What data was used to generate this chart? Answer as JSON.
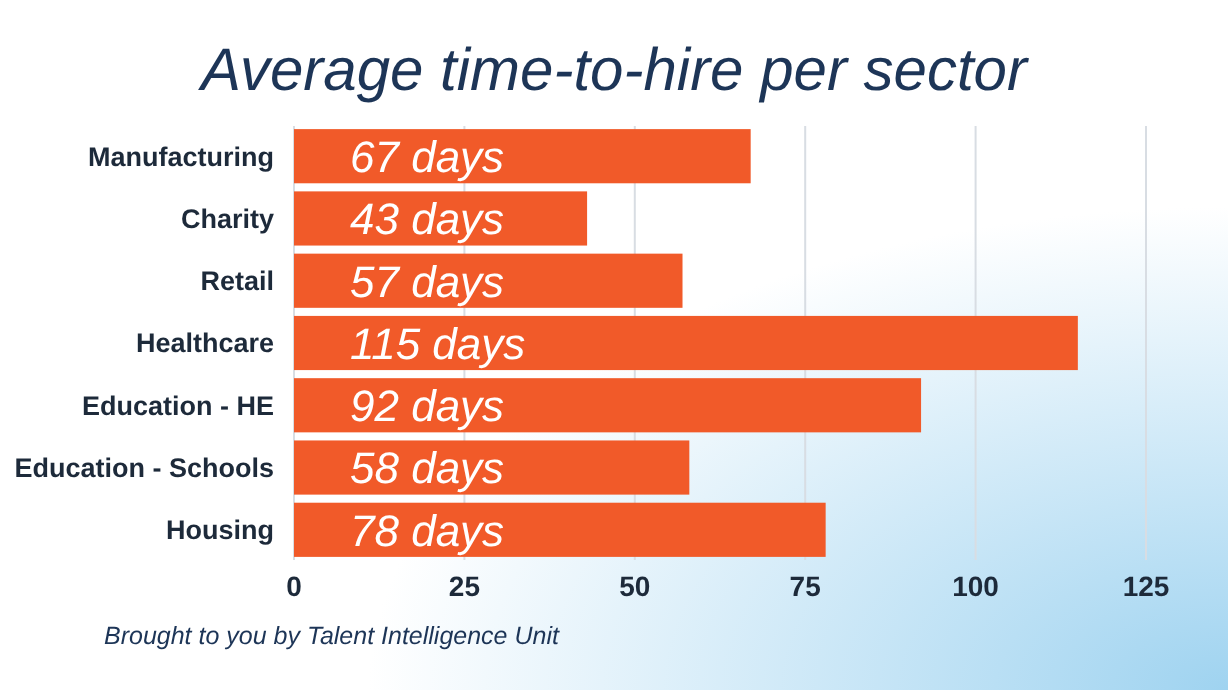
{
  "chart_data": {
    "type": "bar",
    "orientation": "horizontal",
    "title": "Average time-to-hire per sector",
    "categories": [
      "Manufacturing",
      "Charity",
      "Retail",
      "Healthcare",
      "Education - HE",
      "Education - Schools",
      "Housing"
    ],
    "values": [
      67,
      43,
      57,
      115,
      92,
      58,
      78
    ],
    "value_labels": [
      "67 days",
      "43 days",
      "57 days",
      "115 days",
      "92 days",
      "58 days",
      "78 days"
    ],
    "color": "#f15a29",
    "xlim": [
      0,
      125
    ],
    "xticks": [
      0,
      25,
      50,
      75,
      100,
      125
    ],
    "grid": "x",
    "annotations": [
      "Brought to you by Talent Intelligence Unit"
    ]
  }
}
